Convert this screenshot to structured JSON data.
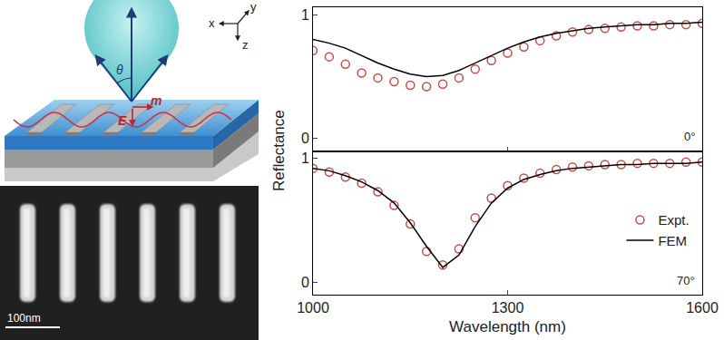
{
  "chart_data": [
    {
      "type": "line",
      "annotations": [
        "0°"
      ],
      "x": [
        1000,
        1025,
        1050,
        1075,
        1100,
        1125,
        1150,
        1175,
        1200,
        1225,
        1250,
        1275,
        1300,
        1325,
        1350,
        1375,
        1400,
        1425,
        1450,
        1475,
        1500,
        1525,
        1550,
        1575,
        1600
      ],
      "xlim": [
        1000,
        1600
      ],
      "xticks": [
        1000,
        1300,
        1600
      ],
      "ylim": [
        -0.1,
        1.06
      ],
      "yticks": [
        0,
        1
      ],
      "tick_labels": "y",
      "series": [
        {
          "name": "Expt.",
          "type": "scatter",
          "marker": "circle-open",
          "color": "#c0504d",
          "values": [
            0.71,
            0.66,
            0.6,
            0.53,
            0.49,
            0.46,
            0.43,
            0.42,
            0.44,
            0.49,
            0.56,
            0.63,
            0.69,
            0.74,
            0.79,
            0.83,
            0.86,
            0.88,
            0.89,
            0.9,
            0.91,
            0.91,
            0.92,
            0.92,
            0.93
          ]
        },
        {
          "name": "FEM",
          "type": "line",
          "line_style": "solid",
          "color": "#000000",
          "values": [
            0.8,
            0.77,
            0.73,
            0.67,
            0.61,
            0.56,
            0.52,
            0.5,
            0.51,
            0.55,
            0.61,
            0.67,
            0.73,
            0.78,
            0.82,
            0.85,
            0.87,
            0.89,
            0.9,
            0.91,
            0.92,
            0.92,
            0.93,
            0.93,
            0.94
          ]
        }
      ]
    },
    {
      "type": "line",
      "annotations": [
        "70°"
      ],
      "x_label": "Wavelength (nm)",
      "y_label": "Reflectance",
      "legend": "right",
      "x": [
        1000,
        1025,
        1050,
        1075,
        1100,
        1125,
        1150,
        1175,
        1200,
        1225,
        1250,
        1275,
        1300,
        1325,
        1350,
        1375,
        1400,
        1425,
        1450,
        1475,
        1500,
        1525,
        1550,
        1575,
        1600
      ],
      "xlim": [
        1000,
        1600
      ],
      "xticks": [
        1000,
        1300,
        1600
      ],
      "ylim": [
        -0.1,
        1.06
      ],
      "yticks": [
        0,
        1
      ],
      "series": [
        {
          "name": "Expt.",
          "type": "scatter",
          "marker": "circle-open",
          "color": "#c0504d",
          "values": [
            0.92,
            0.89,
            0.85,
            0.8,
            0.73,
            0.62,
            0.47,
            0.25,
            0.14,
            0.27,
            0.52,
            0.68,
            0.78,
            0.84,
            0.88,
            0.91,
            0.93,
            0.94,
            0.95,
            0.95,
            0.96,
            0.96,
            0.96,
            0.97,
            0.97
          ]
        },
        {
          "name": "FEM",
          "type": "line",
          "line_style": "solid",
          "color": "#000000",
          "values": [
            0.92,
            0.9,
            0.86,
            0.81,
            0.74,
            0.64,
            0.48,
            0.29,
            0.12,
            0.22,
            0.45,
            0.64,
            0.76,
            0.83,
            0.87,
            0.9,
            0.92,
            0.93,
            0.94,
            0.95,
            0.95,
            0.96,
            0.96,
            0.96,
            0.97
          ]
        }
      ]
    }
  ],
  "diagram": {
    "theta_label": "θ",
    "magnetic_label": "m",
    "electric_label": "E",
    "axis_labels": [
      "x",
      "y",
      "z"
    ],
    "scale_bar": "100nm"
  }
}
